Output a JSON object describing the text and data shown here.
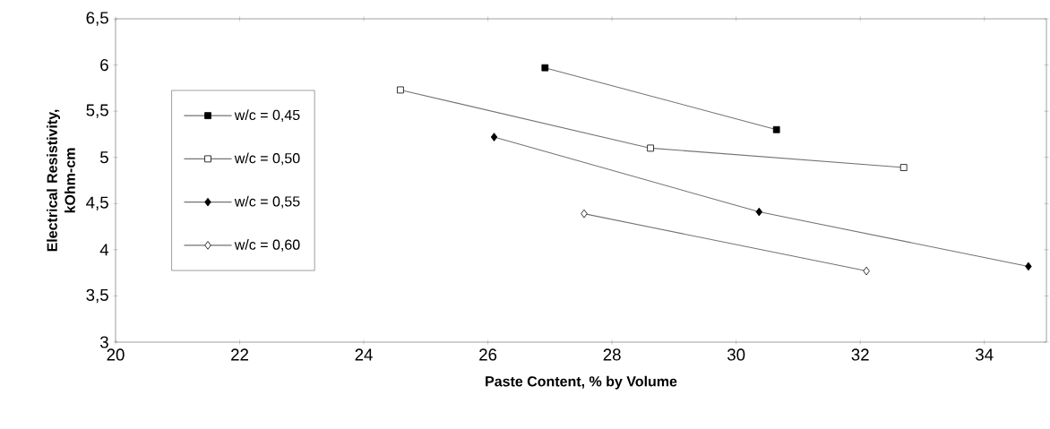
{
  "chart_data": {
    "type": "line",
    "xlabel": "Paste Content, % by Volume",
    "ylabel": "Electrical Resistivity, kOhm-cm",
    "xlim": [
      20,
      35
    ],
    "ylim": [
      3,
      6.5
    ],
    "xticks": [
      20,
      22,
      24,
      26,
      28,
      30,
      32,
      34
    ],
    "yticks": [
      {
        "value": 3,
        "label": "3"
      },
      {
        "value": 3.5,
        "label": "3,5"
      },
      {
        "value": 4,
        "label": "4"
      },
      {
        "value": 4.5,
        "label": "4,5"
      },
      {
        "value": 5,
        "label": "5"
      },
      {
        "value": 5.5,
        "label": "5,5"
      },
      {
        "value": 6,
        "label": "6"
      },
      {
        "value": 6.5,
        "label": "6,5"
      }
    ],
    "grid": false,
    "legend": "left",
    "line_style": "solid",
    "series": [
      {
        "name": "w/c = 0,45",
        "color": "#000000",
        "marker": "square",
        "x": [
          26.92,
          30.65
        ],
        "values": [
          5.97,
          5.3
        ]
      },
      {
        "name": "w/c = 0,50",
        "color": "#ffffff",
        "marker": "square",
        "x": [
          24.59,
          28.62,
          32.7
        ],
        "values": [
          5.73,
          5.1,
          4.89
        ]
      },
      {
        "name": "w/c = 0,55",
        "color": "#000000",
        "marker": "diamond",
        "x": [
          26.1,
          30.37,
          34.71
        ],
        "values": [
          5.22,
          4.41,
          3.82
        ]
      },
      {
        "name": "w/c = 0,60",
        "color": "#ffffff",
        "marker": "diamond",
        "x": [
          27.55,
          32.1
        ],
        "values": [
          4.39,
          3.77
        ]
      }
    ]
  }
}
